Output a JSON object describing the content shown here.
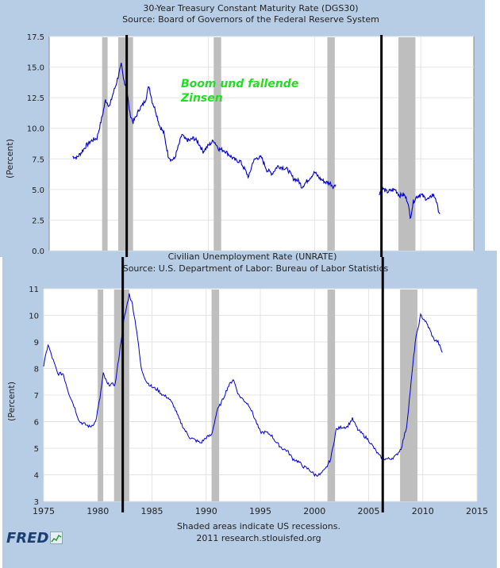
{
  "chart_data": [
    {
      "type": "line",
      "title": "30-Year Treasury Constant Maturity Rate (DGS30)",
      "subtitle": "Source: Board of Governors of the Federal Reserve System",
      "ylabel": "(Percent)",
      "ylim": [
        0,
        17.5
      ],
      "yticks": [
        "0.0",
        "2.5",
        "5.0",
        "7.5",
        "10.0",
        "12.5",
        "15.0",
        "17.5"
      ],
      "xlim": [
        1975,
        2015
      ],
      "annotation": "Boom und fallende\nZinsen",
      "series": [
        {
          "name": "DGS30",
          "segments": [
            {
              "x": [
                1977.2,
                1977.6,
                1978.0,
                1978.5,
                1979.0,
                1979.5,
                1980.0,
                1980.3,
                1980.7,
                1981.0,
                1981.3,
                1981.6,
                1981.8,
                1982.0,
                1982.3,
                1982.6,
                1982.9,
                1983.2,
                1983.5,
                1983.8,
                1984.1,
                1984.4,
                1984.7,
                1985.0,
                1985.4,
                1985.8,
                1986.2,
                1986.5,
                1986.8,
                1987.2,
                1987.5,
                1987.8,
                1988.2,
                1988.6,
                1989.0,
                1989.5,
                1990.0,
                1990.5,
                1991.0,
                1991.5,
                1992.0,
                1992.5,
                1993.0,
                1993.5,
                1993.8,
                1994.2,
                1994.6,
                1995.0,
                1995.5,
                1996.0,
                1996.5,
                1997.0,
                1997.5,
                1998.0,
                1998.5,
                1998.8,
                1999.2,
                1999.6,
                2000.0,
                2000.5,
                2001.0,
                2001.5,
                2001.8,
                2002.0
              ],
              "y": [
                7.7,
                7.6,
                8.0,
                8.6,
                9.0,
                9.2,
                11.0,
                12.3,
                11.8,
                12.8,
                13.6,
                14.6,
                15.2,
                14.0,
                13.3,
                11.2,
                10.5,
                11.0,
                11.6,
                11.9,
                12.4,
                13.5,
                12.2,
                11.5,
                10.2,
                9.6,
                7.8,
                7.4,
                7.5,
                8.6,
                9.5,
                9.1,
                9.0,
                9.2,
                8.9,
                8.1,
                8.6,
                9.0,
                8.3,
                8.2,
                7.8,
                7.4,
                7.3,
                6.5,
                6.0,
                7.3,
                7.6,
                7.6,
                6.6,
                6.3,
                6.9,
                6.8,
                6.6,
                5.9,
                5.7,
                5.2,
                5.6,
                6.0,
                6.4,
                5.9,
                5.6,
                5.5,
                5.2,
                5.4
              ]
            },
            {
              "x": [
                2006.1,
                2006.4,
                2006.8,
                2007.2,
                2007.6,
                2008.0,
                2008.4,
                2008.8,
                2009.0,
                2009.3,
                2009.6,
                2010.0,
                2010.4,
                2010.8,
                2011.1,
                2011.4,
                2011.6,
                2011.8
              ],
              "y": [
                4.7,
                5.1,
                4.8,
                4.9,
                5.0,
                4.5,
                4.6,
                4.0,
                2.6,
                4.0,
                4.4,
                4.6,
                4.3,
                4.2,
                4.6,
                4.3,
                3.5,
                3.0
              ]
            }
          ]
        }
      ]
    },
    {
      "type": "line",
      "title": "Civilian Unemployment Rate (UNRATE)",
      "subtitle": "Source: U.S. Department of Labor: Bureau of Labor Statistics",
      "ylabel": "(Percent)",
      "ylim": [
        3,
        11
      ],
      "yticks": [
        "3",
        "4",
        "5",
        "6",
        "7",
        "8",
        "9",
        "10",
        "11"
      ],
      "xlim": [
        1975,
        2015
      ],
      "xticks": [
        "1975",
        "1980",
        "1985",
        "1990",
        "1995",
        "2000",
        "2005",
        "2010",
        "2015"
      ],
      "series": [
        {
          "name": "UNRATE",
          "x": [
            1975.0,
            1975.4,
            1975.8,
            1976.3,
            1976.8,
            1977.3,
            1977.8,
            1978.3,
            1978.8,
            1979.3,
            1979.8,
            1980.2,
            1980.5,
            1980.9,
            1981.3,
            1981.6,
            1982.0,
            1982.4,
            1982.9,
            1983.2,
            1983.6,
            1984.0,
            1984.5,
            1985.0,
            1985.5,
            1986.0,
            1986.5,
            1987.0,
            1987.5,
            1988.0,
            1988.5,
            1989.0,
            1989.5,
            1990.0,
            1990.5,
            1991.0,
            1991.5,
            1992.0,
            1992.5,
            1993.0,
            1993.5,
            1994.0,
            1994.5,
            1995.0,
            1995.5,
            1996.0,
            1996.5,
            1997.0,
            1997.5,
            1998.0,
            1998.5,
            1999.0,
            1999.5,
            2000.0,
            2000.5,
            2001.0,
            2001.5,
            2002.0,
            2002.5,
            2003.0,
            2003.5,
            2004.0,
            2004.5,
            2005.0,
            2005.5,
            2006.0,
            2006.5,
            2007.0,
            2007.5,
            2008.0,
            2008.5,
            2009.0,
            2009.3,
            2009.8,
            2010.2,
            2010.6,
            2011.0,
            2011.4,
            2011.8
          ],
          "y": [
            8.1,
            8.9,
            8.4,
            7.8,
            7.8,
            7.1,
            6.6,
            6.0,
            5.9,
            5.8,
            6.0,
            6.9,
            7.8,
            7.4,
            7.4,
            7.4,
            8.6,
            9.8,
            10.8,
            10.4,
            9.4,
            8.0,
            7.5,
            7.3,
            7.2,
            7.0,
            6.9,
            6.6,
            6.1,
            5.7,
            5.4,
            5.3,
            5.2,
            5.4,
            5.5,
            6.4,
            6.8,
            7.3,
            7.6,
            7.0,
            6.8,
            6.6,
            6.1,
            5.6,
            5.6,
            5.5,
            5.2,
            5.0,
            4.9,
            4.6,
            4.5,
            4.3,
            4.2,
            4.0,
            4.0,
            4.2,
            4.6,
            5.7,
            5.8,
            5.8,
            6.1,
            5.7,
            5.5,
            5.3,
            5.0,
            4.7,
            4.6,
            4.6,
            4.7,
            5.0,
            5.8,
            7.8,
            9.0,
            10.0,
            9.8,
            9.5,
            9.1,
            9.0,
            8.6
          ]
        }
      ]
    }
  ],
  "recessions": [
    [
      1980.0,
      1980.5
    ],
    [
      1981.5,
      1982.9
    ],
    [
      1990.5,
      1991.2
    ],
    [
      2001.2,
      2001.9
    ],
    [
      2007.9,
      2009.5
    ]
  ],
  "markers": [
    1982.3,
    2006.3
  ],
  "footer": {
    "line1": "Shaded areas indicate US recessions.",
    "line2": "2011 research.stlouisfed.org"
  },
  "logo": {
    "text": "FRED"
  },
  "colors": {
    "line": "#0000cc",
    "recession": "#bebebe",
    "panel": "#b7cde5",
    "annotation": "#22dd22"
  }
}
